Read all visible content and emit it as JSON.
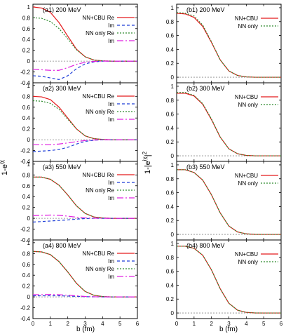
{
  "figure": {
    "left_ylabel": "1-e",
    "left_ylabel_sup": "iχ",
    "right_ylabel": "1-|e",
    "right_ylabel_sup": "iχ",
    "right_ylabel_tail": "|",
    "right_ylabel_tail_sup": "2",
    "xlabel_left": "b (fm)",
    "xlabel_right": "b (fm)"
  },
  "chart_data": [
    {
      "type": "line",
      "panel": "a1",
      "title": "(a1) 200 MeV",
      "xlim": [
        0,
        6
      ],
      "ylim": [
        -0.4,
        1.05
      ],
      "yticks": [
        "-0.4",
        "-0.2",
        "0",
        "0.2",
        "0.4",
        "0.6",
        "0.8",
        "1"
      ],
      "legend": [
        "NN+CBU Re",
        "Im",
        "NN only Re",
        "Im"
      ],
      "series": [
        {
          "name": "NN+CBU Re",
          "color": "#e41a1c",
          "dash": "solid",
          "x": [
            0,
            0.5,
            1,
            1.5,
            2,
            2.5,
            3,
            3.5,
            4,
            4.5,
            5,
            6
          ],
          "y": [
            1.0,
            0.98,
            0.9,
            0.71,
            0.46,
            0.22,
            0.08,
            0.02,
            0.005,
            0.0,
            0.0,
            0.0
          ]
        },
        {
          "name": "Im",
          "color": "#1f3fd8",
          "dash": "4,3",
          "x": [
            0,
            0.5,
            1,
            1.5,
            2,
            2.5,
            3,
            3.5,
            4,
            4.5,
            5,
            6
          ],
          "y": [
            -0.27,
            -0.28,
            -0.31,
            -0.34,
            -0.27,
            -0.14,
            -0.05,
            -0.015,
            0.0,
            0.0,
            0.0,
            0.0
          ]
        },
        {
          "name": "NN only Re",
          "color": "#2e8b2e",
          "dash": "2,2",
          "x": [
            0,
            0.5,
            1,
            1.5,
            2,
            2.5,
            3,
            3.5,
            4,
            4.5,
            5,
            6
          ],
          "y": [
            0.8,
            0.79,
            0.73,
            0.6,
            0.41,
            0.21,
            0.08,
            0.02,
            0.005,
            0.0,
            0.0,
            0.0
          ]
        },
        {
          "name": "Im",
          "color": "#e020e0",
          "dash": "9,3,2,3",
          "x": [
            0,
            0.5,
            1,
            1.5,
            2,
            2.5,
            3,
            3.5,
            4,
            4.5,
            5,
            6
          ],
          "y": [
            -0.15,
            -0.16,
            -0.17,
            -0.17,
            -0.12,
            -0.06,
            -0.02,
            -0.005,
            0.0,
            0.0,
            0.0,
            0.0
          ]
        }
      ]
    },
    {
      "type": "line",
      "panel": "a2",
      "title": "(a2) 300 MeV",
      "xlim": [
        0,
        6
      ],
      "ylim": [
        -0.4,
        1.05
      ],
      "yticks": [
        "-0.4",
        "-0.2",
        "0",
        "0.2",
        "0.4",
        "0.6",
        "0.8",
        "1"
      ],
      "legend": [
        "NN+CBU Re",
        "Im",
        "NN only Re",
        "Im"
      ],
      "series": [
        {
          "name": "NN+CBU Re",
          "color": "#e41a1c",
          "dash": "solid",
          "x": [
            0,
            0.5,
            1,
            1.5,
            2,
            2.5,
            3,
            3.5,
            4,
            4.5,
            5,
            6
          ],
          "y": [
            0.8,
            0.79,
            0.74,
            0.6,
            0.4,
            0.2,
            0.07,
            0.02,
            0.005,
            0.0,
            0.0,
            0.0
          ]
        },
        {
          "name": "Im",
          "color": "#1f3fd8",
          "dash": "4,3",
          "x": [
            0,
            0.5,
            1,
            1.5,
            2,
            2.5,
            3,
            3.5,
            4,
            4.5,
            5,
            6
          ],
          "y": [
            -0.22,
            -0.21,
            -0.2,
            -0.18,
            -0.14,
            -0.08,
            -0.03,
            -0.01,
            0.0,
            0.0,
            0.0,
            0.0
          ]
        },
        {
          "name": "NN only Re",
          "color": "#2e8b2e",
          "dash": "2,2",
          "x": [
            0,
            0.5,
            1,
            1.5,
            2,
            2.5,
            3,
            3.5,
            4,
            4.5,
            5,
            6
          ],
          "y": [
            0.72,
            0.71,
            0.67,
            0.56,
            0.38,
            0.2,
            0.07,
            0.02,
            0.005,
            0.0,
            0.0,
            0.0
          ]
        },
        {
          "name": "Im",
          "color": "#e020e0",
          "dash": "9,3,2,3",
          "x": [
            0,
            0.5,
            1,
            1.5,
            2,
            2.5,
            3,
            3.5,
            4,
            4.5,
            5,
            6
          ],
          "y": [
            -0.09,
            -0.09,
            -0.09,
            -0.08,
            -0.06,
            -0.035,
            -0.015,
            -0.005,
            0.0,
            0.0,
            0.0,
            0.0
          ]
        }
      ]
    },
    {
      "type": "line",
      "panel": "a3",
      "title": "(a3) 550 MeV",
      "xlim": [
        0,
        6
      ],
      "ylim": [
        -0.4,
        1.05
      ],
      "yticks": [
        "-0.4",
        "-0.2",
        "0",
        "0.2",
        "0.4",
        "0.6",
        "0.8",
        "1"
      ],
      "legend": [
        "NN+CBU Re",
        "Im",
        "NN only Re",
        "Im"
      ],
      "series": [
        {
          "name": "NN+CBU Re",
          "color": "#e41a1c",
          "dash": "solid",
          "x": [
            0,
            0.5,
            1,
            1.5,
            2,
            2.5,
            3,
            3.5,
            4,
            4.5,
            5,
            6
          ],
          "y": [
            0.76,
            0.76,
            0.72,
            0.61,
            0.43,
            0.23,
            0.09,
            0.025,
            0.006,
            0.0,
            0.0,
            0.0
          ]
        },
        {
          "name": "Im",
          "color": "#1f3fd8",
          "dash": "4,3",
          "x": [
            0,
            0.5,
            1,
            1.5,
            2,
            2.5,
            3,
            3.5,
            4,
            4.5,
            5,
            6
          ],
          "y": [
            -0.07,
            -0.06,
            -0.05,
            -0.04,
            -0.03,
            -0.015,
            -0.005,
            0.0,
            0.0,
            0.0,
            0.0,
            0.0
          ]
        },
        {
          "name": "NN only Re",
          "color": "#2e8b2e",
          "dash": "2,2",
          "x": [
            0,
            0.5,
            1,
            1.5,
            2,
            2.5,
            3,
            3.5,
            4,
            4.5,
            5,
            6
          ],
          "y": [
            0.76,
            0.76,
            0.72,
            0.61,
            0.43,
            0.23,
            0.09,
            0.025,
            0.006,
            0.0,
            0.0,
            0.0
          ]
        },
        {
          "name": "Im",
          "color": "#e020e0",
          "dash": "9,3,2,3",
          "x": [
            0,
            0.5,
            1,
            1.5,
            2,
            2.5,
            3,
            3.5,
            4,
            4.5,
            5,
            6
          ],
          "y": [
            0.05,
            0.055,
            0.06,
            0.055,
            0.04,
            0.02,
            0.007,
            0.002,
            0.0,
            0.0,
            0.0,
            0.0
          ]
        }
      ]
    },
    {
      "type": "line",
      "panel": "a4",
      "title": "(a4) 800 MeV",
      "xlim": [
        0,
        6
      ],
      "ylim": [
        -0.4,
        1.05
      ],
      "yticks": [
        "-0.4",
        "-0.2",
        "0",
        "0.2",
        "0.4",
        "0.6",
        "0.8",
        "1"
      ],
      "legend": [
        "NN+CBU Re",
        "Im",
        "NN only Re",
        "Im"
      ],
      "series": [
        {
          "name": "NN+CBU Re",
          "color": "#e41a1c",
          "dash": "solid",
          "x": [
            0,
            0.5,
            1,
            1.5,
            2,
            2.5,
            3,
            3.5,
            4,
            4.5,
            5,
            6
          ],
          "y": [
            0.84,
            0.83,
            0.78,
            0.65,
            0.46,
            0.25,
            0.1,
            0.03,
            0.007,
            0.0,
            0.0,
            0.0
          ]
        },
        {
          "name": "Im",
          "color": "#1f3fd8",
          "dash": "4,3",
          "x": [
            0,
            0.5,
            1,
            1.5,
            2,
            2.5,
            3,
            3.5,
            4,
            4.5,
            5,
            6
          ],
          "y": [
            0.02,
            0.02,
            0.02,
            0.02,
            0.015,
            0.01,
            0.004,
            0.001,
            0.0,
            0.0,
            0.0,
            0.0
          ]
        },
        {
          "name": "NN only Re",
          "color": "#2e8b2e",
          "dash": "2,2",
          "x": [
            0,
            0.5,
            1,
            1.5,
            2,
            2.5,
            3,
            3.5,
            4,
            4.5,
            5,
            6
          ],
          "y": [
            0.84,
            0.83,
            0.78,
            0.65,
            0.46,
            0.25,
            0.1,
            0.03,
            0.007,
            0.0,
            0.0,
            0.0
          ]
        },
        {
          "name": "Im",
          "color": "#e020e0",
          "dash": "9,3,2,3",
          "x": [
            0,
            0.5,
            1,
            1.5,
            2,
            2.5,
            3,
            3.5,
            4,
            4.5,
            5,
            6
          ],
          "y": [
            0.04,
            0.04,
            0.045,
            0.04,
            0.03,
            0.02,
            0.008,
            0.002,
            0.0,
            0.0,
            0.0,
            0.0
          ]
        }
      ]
    },
    {
      "type": "line",
      "panel": "b1",
      "title": "(b1) 200 MeV",
      "xlim": [
        0,
        6
      ],
      "ylim": [
        -0.08,
        1.05
      ],
      "yticks": [
        "0",
        "0.2",
        "0.4",
        "0.6",
        "0.8",
        "1"
      ],
      "legend": [
        "NN+CBU",
        "NN only"
      ],
      "series": [
        {
          "name": "NN+CBU",
          "color": "#e41a1c",
          "dash": "solid",
          "x": [
            0,
            0.5,
            1,
            1.5,
            2,
            2.5,
            3,
            3.5,
            4,
            4.5,
            5,
            6
          ],
          "y": [
            0.92,
            0.91,
            0.86,
            0.73,
            0.5,
            0.25,
            0.09,
            0.025,
            0.005,
            0.0,
            0.0,
            0.0
          ]
        },
        {
          "name": "NN only",
          "color": "#2e8b2e",
          "dash": "2,2",
          "x": [
            0,
            0.5,
            1,
            1.5,
            2,
            2.5,
            3,
            3.5,
            4,
            4.5,
            5,
            6
          ],
          "y": [
            0.93,
            0.92,
            0.88,
            0.75,
            0.51,
            0.25,
            0.09,
            0.025,
            0.005,
            0.0,
            0.0,
            0.0
          ]
        }
      ]
    },
    {
      "type": "line",
      "panel": "b2",
      "title": "(b2) 300 MeV",
      "xlim": [
        0,
        6
      ],
      "ylim": [
        -0.08,
        1.05
      ],
      "yticks": [
        "0",
        "0.2",
        "0.4",
        "0.6",
        "0.8",
        "1"
      ],
      "legend": [
        "NN+CBU",
        "NN only"
      ],
      "series": [
        {
          "name": "NN+CBU",
          "color": "#e41a1c",
          "dash": "solid",
          "x": [
            0,
            0.5,
            1,
            1.5,
            2,
            2.5,
            3,
            3.5,
            4,
            4.5,
            5,
            6
          ],
          "y": [
            0.9,
            0.9,
            0.86,
            0.74,
            0.52,
            0.27,
            0.1,
            0.03,
            0.006,
            0.0,
            0.0,
            0.0
          ]
        },
        {
          "name": "NN only",
          "color": "#2e8b2e",
          "dash": "2,2",
          "x": [
            0,
            0.5,
            1,
            1.5,
            2,
            2.5,
            3,
            3.5,
            4,
            4.5,
            5,
            6
          ],
          "y": [
            0.91,
            0.91,
            0.87,
            0.75,
            0.53,
            0.27,
            0.1,
            0.03,
            0.006,
            0.0,
            0.0,
            0.0
          ]
        }
      ]
    },
    {
      "type": "line",
      "panel": "b3",
      "title": "(b3) 550 MeV",
      "xlim": [
        0,
        6
      ],
      "ylim": [
        -0.08,
        1.05
      ],
      "yticks": [
        "0",
        "0.2",
        "0.4",
        "0.6",
        "0.8",
        "1"
      ],
      "legend": [
        "NN+CBU",
        "NN only"
      ],
      "series": [
        {
          "name": "NN+CBU",
          "color": "#e41a1c",
          "dash": "solid",
          "x": [
            0,
            0.5,
            1,
            1.5,
            2,
            2.5,
            3,
            3.5,
            4,
            4.5,
            5,
            6
          ],
          "y": [
            0.93,
            0.93,
            0.89,
            0.78,
            0.57,
            0.31,
            0.12,
            0.035,
            0.008,
            0.001,
            0.0,
            0.0
          ]
        },
        {
          "name": "NN only",
          "color": "#2e8b2e",
          "dash": "2,2",
          "x": [
            0,
            0.5,
            1,
            1.5,
            2,
            2.5,
            3,
            3.5,
            4,
            4.5,
            5,
            6
          ],
          "y": [
            0.93,
            0.93,
            0.89,
            0.78,
            0.57,
            0.31,
            0.12,
            0.035,
            0.008,
            0.001,
            0.0,
            0.0
          ]
        }
      ]
    },
    {
      "type": "line",
      "panel": "b4",
      "title": "(b4) 800 MeV",
      "xlim": [
        0,
        6
      ],
      "ylim": [
        -0.08,
        1.05
      ],
      "yticks": [
        "0",
        "0.2",
        "0.4",
        "0.6",
        "0.8",
        "1"
      ],
      "legend": [
        "NN+CBU",
        "NN only"
      ],
      "series": [
        {
          "name": "NN+CBU",
          "color": "#e41a1c",
          "dash": "solid",
          "x": [
            0,
            0.5,
            1,
            1.5,
            2,
            2.5,
            3,
            3.5,
            4,
            4.5,
            5,
            6
          ],
          "y": [
            0.96,
            0.96,
            0.93,
            0.83,
            0.62,
            0.35,
            0.14,
            0.04,
            0.009,
            0.001,
            0.0,
            0.0
          ]
        },
        {
          "name": "NN only",
          "color": "#2e8b2e",
          "dash": "2,2",
          "x": [
            0,
            0.5,
            1,
            1.5,
            2,
            2.5,
            3,
            3.5,
            4,
            4.5,
            5,
            6
          ],
          "y": [
            0.96,
            0.96,
            0.93,
            0.83,
            0.62,
            0.35,
            0.14,
            0.04,
            0.009,
            0.001,
            0.0,
            0.0
          ]
        }
      ]
    }
  ]
}
